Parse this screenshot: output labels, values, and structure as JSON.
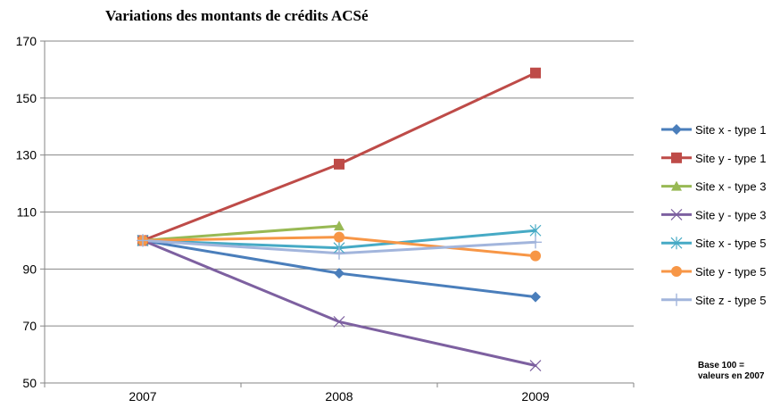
{
  "chart_data": {
    "type": "line",
    "title": "Variations des montants de crédits ACSé",
    "xlabel": "",
    "ylabel": "",
    "categories": [
      "2007",
      "2008",
      "2009"
    ],
    "yticks": [
      50,
      70,
      90,
      110,
      130,
      150,
      170
    ],
    "ylim": [
      50,
      170
    ],
    "grid": "horizontal",
    "legend_position": "right",
    "series": [
      {
        "name": "Site x - type 1",
        "values": [
          100,
          88.5,
          80.2
        ],
        "color": "#4A7EBB",
        "marker": "diamond"
      },
      {
        "name": "Site y - type 1",
        "values": [
          100,
          126.8,
          158.8
        ],
        "color": "#BE4B48",
        "marker": "square"
      },
      {
        "name": "Site x - type 3",
        "values": [
          100,
          105.1,
          null
        ],
        "color": "#98B954",
        "marker": "triangle"
      },
      {
        "name": "Site y - type 3",
        "values": [
          100,
          71.5,
          56.1
        ],
        "color": "#7D60A0",
        "marker": "x"
      },
      {
        "name": "Site x - type 5",
        "values": [
          100,
          97.4,
          103.5
        ],
        "color": "#46AAC5",
        "marker": "asterisk"
      },
      {
        "name": "Site y - type 5",
        "values": [
          100,
          101.2,
          94.6
        ],
        "color": "#F79646",
        "marker": "circle"
      },
      {
        "name": "Site z - type 5",
        "values": [
          100,
          95.5,
          99.4
        ],
        "color": "#A2B5DC",
        "marker": "plus"
      }
    ]
  },
  "note": "Base 100 = valeurs en 2007"
}
